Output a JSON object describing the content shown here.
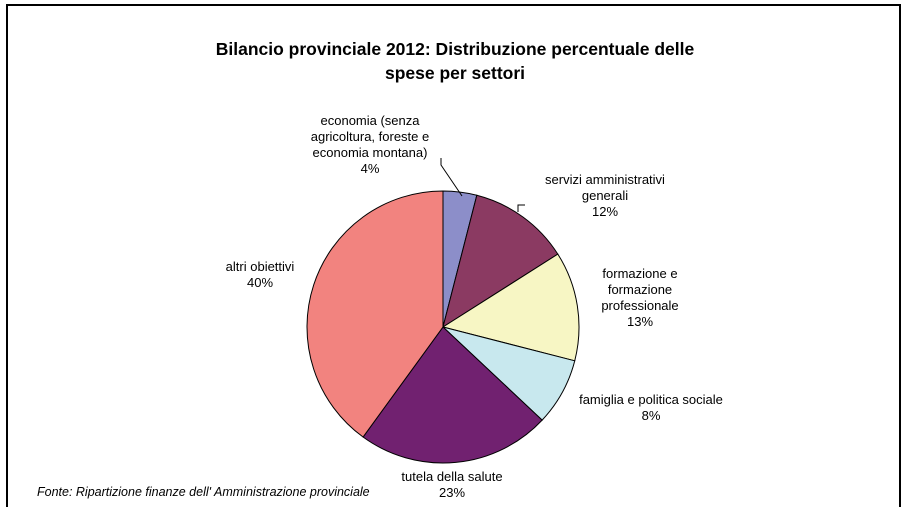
{
  "chart_data": {
    "type": "pie",
    "title": "Bilancio provinciale 2012: Distribuzione percentuale delle spese per settori",
    "title_lines": [
      "Bilancio provinciale 2012: Distribuzione percentuale delle",
      "spese per settori"
    ],
    "slices": [
      {
        "label_lines": [
          "economia (senza",
          "agricoltura, foreste e",
          "economia montana)"
        ],
        "value": 4,
        "pct_text": "4%",
        "color": "#8c8ec9"
      },
      {
        "label_lines": [
          "servizi amministrativi",
          "generali"
        ],
        "value": 12,
        "pct_text": "12%",
        "color": "#8b3a62"
      },
      {
        "label_lines": [
          "formazione e",
          "formazione",
          "professionale"
        ],
        "value": 13,
        "pct_text": "13%",
        "color": "#f7f6c4"
      },
      {
        "label_lines": [
          "famiglia e politica sociale"
        ],
        "value": 8,
        "pct_text": "8%",
        "color": "#c8e8ee"
      },
      {
        "label_lines": [
          "tutela della salute"
        ],
        "value": 23,
        "pct_text": "23%",
        "color": "#712170"
      },
      {
        "label_lines": [
          "altri obiettivi"
        ],
        "value": 40,
        "pct_text": "40%",
        "color": "#f2837f"
      }
    ],
    "source": "Fonte: Ripartizione finanze dell' Amministrazione provinciale"
  }
}
